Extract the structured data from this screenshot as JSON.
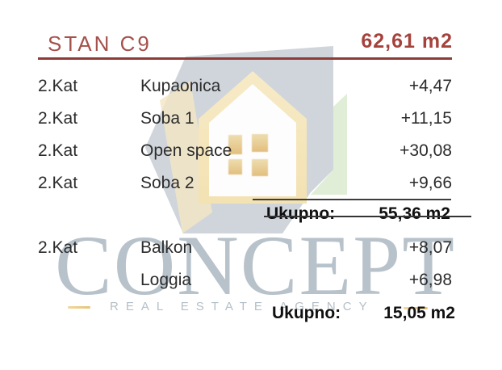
{
  "header": {
    "title": "STAN C9",
    "area": "62,61 m2"
  },
  "table": {
    "rows": [
      {
        "floor": "2.Kat",
        "room": "Kupaonica",
        "value": "+4,47"
      },
      {
        "floor": "2.Kat",
        "room": "Soba 1",
        "value": "+11,15"
      },
      {
        "floor": "2.Kat",
        "room": "Open space",
        "value": "+30,08"
      },
      {
        "floor": "2.Kat",
        "room": "Soba 2",
        "value": "+9,66"
      },
      {
        "floor": "2.Kat",
        "room": "Balkon",
        "value": "+8,07"
      },
      {
        "floor": "",
        "room": "Loggia",
        "value": "+6,98"
      }
    ],
    "totals": [
      {
        "label": "Ukupno:",
        "value": "55,36 m2"
      },
      {
        "label": "Ukupno:",
        "value": "15,05 m2"
      }
    ]
  },
  "watermark": {
    "brand": "CONCEPT",
    "tagline": "REAL ESTATE AGENCY"
  },
  "colors": {
    "title_red": "#a4514b",
    "area_red": "#a5423c",
    "rule_red": "#8d3c38",
    "body_text": "#2c2c2c",
    "total_text": "#101010",
    "watermark_slate": "#cbd2d8",
    "watermark_green": "#dfecd5",
    "watermark_tan": "#f4e6c5",
    "watermark_gold": "#eed9a2",
    "brand_text": "#c2ccd4"
  }
}
